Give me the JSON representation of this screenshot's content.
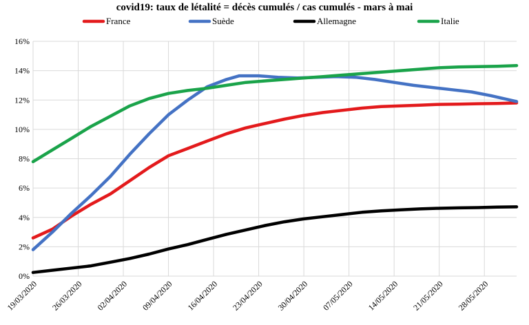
{
  "chart_data": {
    "type": "line",
    "title": "covid19: taux de létalité = décès cumulés / cas cumulés - mars à mai",
    "xlabel": "",
    "ylabel": "",
    "ylim": [
      0,
      16
    ],
    "yticks": [
      "0%",
      "2%",
      "4%",
      "6%",
      "8%",
      "10%",
      "12%",
      "14%",
      "16%"
    ],
    "yticks_values": [
      0,
      2,
      4,
      6,
      8,
      10,
      12,
      14,
      16
    ],
    "xticks": [
      "19/03/2020",
      "26/03/2020",
      "02/04/2020",
      "09/04/2020",
      "16/04/2020",
      "23/04/2020",
      "30/04/2020",
      "07/05/2020",
      "14/05/2020",
      "21/05/2020",
      "28/05/2020"
    ],
    "x_start": "19/03/2020",
    "x_end": "02/06/2020",
    "grid": true,
    "legend_position": "top",
    "series": [
      {
        "name": "France",
        "color": "#e31a1c",
        "points": [
          [
            "19/03/2020",
            2.6
          ],
          [
            "22/03/2020",
            3.2
          ],
          [
            "25/03/2020",
            4.1
          ],
          [
            "28/03/2020",
            4.9
          ],
          [
            "31/03/2020",
            5.6
          ],
          [
            "03/04/2020",
            6.5
          ],
          [
            "06/04/2020",
            7.4
          ],
          [
            "09/04/2020",
            8.2
          ],
          [
            "12/04/2020",
            8.7
          ],
          [
            "15/04/2020",
            9.2
          ],
          [
            "18/04/2020",
            9.7
          ],
          [
            "21/04/2020",
            10.1
          ],
          [
            "24/04/2020",
            10.4
          ],
          [
            "27/04/2020",
            10.7
          ],
          [
            "30/04/2020",
            10.95
          ],
          [
            "03/05/2020",
            11.15
          ],
          [
            "06/05/2020",
            11.3
          ],
          [
            "09/05/2020",
            11.45
          ],
          [
            "12/05/2020",
            11.55
          ],
          [
            "15/05/2020",
            11.6
          ],
          [
            "18/05/2020",
            11.65
          ],
          [
            "21/05/2020",
            11.7
          ],
          [
            "24/05/2020",
            11.72
          ],
          [
            "27/05/2020",
            11.75
          ],
          [
            "30/05/2020",
            11.77
          ],
          [
            "02/06/2020",
            11.8
          ]
        ]
      },
      {
        "name": "Suède",
        "color": "#4472c4",
        "points": [
          [
            "19/03/2020",
            1.8
          ],
          [
            "22/03/2020",
            3.0
          ],
          [
            "25/03/2020",
            4.3
          ],
          [
            "28/03/2020",
            5.5
          ],
          [
            "31/03/2020",
            6.8
          ],
          [
            "03/04/2020",
            8.3
          ],
          [
            "06/04/2020",
            9.7
          ],
          [
            "09/04/2020",
            11.0
          ],
          [
            "12/04/2020",
            12.0
          ],
          [
            "15/04/2020",
            12.9
          ],
          [
            "18/04/2020",
            13.4
          ],
          [
            "20/04/2020",
            13.65
          ],
          [
            "23/04/2020",
            13.65
          ],
          [
            "26/04/2020",
            13.55
          ],
          [
            "29/04/2020",
            13.5
          ],
          [
            "02/05/2020",
            13.55
          ],
          [
            "05/05/2020",
            13.6
          ],
          [
            "08/05/2020",
            13.55
          ],
          [
            "11/05/2020",
            13.4
          ],
          [
            "14/05/2020",
            13.2
          ],
          [
            "17/05/2020",
            13.0
          ],
          [
            "20/05/2020",
            12.85
          ],
          [
            "23/05/2020",
            12.7
          ],
          [
            "26/05/2020",
            12.55
          ],
          [
            "29/05/2020",
            12.3
          ],
          [
            "01/06/2020",
            12.0
          ],
          [
            "02/06/2020",
            11.9
          ]
        ]
      },
      {
        "name": "Allemagne",
        "color": "#000000",
        "points": [
          [
            "19/03/2020",
            0.25
          ],
          [
            "22/03/2020",
            0.4
          ],
          [
            "25/03/2020",
            0.55
          ],
          [
            "28/03/2020",
            0.7
          ],
          [
            "31/03/2020",
            0.95
          ],
          [
            "03/04/2020",
            1.2
          ],
          [
            "06/04/2020",
            1.5
          ],
          [
            "09/04/2020",
            1.85
          ],
          [
            "12/04/2020",
            2.15
          ],
          [
            "15/04/2020",
            2.5
          ],
          [
            "18/04/2020",
            2.85
          ],
          [
            "21/04/2020",
            3.15
          ],
          [
            "24/04/2020",
            3.45
          ],
          [
            "27/04/2020",
            3.7
          ],
          [
            "30/04/2020",
            3.9
          ],
          [
            "03/05/2020",
            4.05
          ],
          [
            "06/05/2020",
            4.2
          ],
          [
            "09/05/2020",
            4.35
          ],
          [
            "12/05/2020",
            4.45
          ],
          [
            "15/05/2020",
            4.52
          ],
          [
            "18/05/2020",
            4.58
          ],
          [
            "21/05/2020",
            4.62
          ],
          [
            "24/05/2020",
            4.65
          ],
          [
            "27/05/2020",
            4.67
          ],
          [
            "30/05/2020",
            4.7
          ],
          [
            "02/06/2020",
            4.72
          ]
        ]
      },
      {
        "name": "Italie",
        "color": "#1aa34a",
        "points": [
          [
            "19/03/2020",
            7.8
          ],
          [
            "22/03/2020",
            8.6
          ],
          [
            "25/03/2020",
            9.4
          ],
          [
            "28/03/2020",
            10.2
          ],
          [
            "31/03/2020",
            10.9
          ],
          [
            "03/04/2020",
            11.6
          ],
          [
            "06/04/2020",
            12.1
          ],
          [
            "09/04/2020",
            12.45
          ],
          [
            "12/04/2020",
            12.65
          ],
          [
            "15/04/2020",
            12.8
          ],
          [
            "18/04/2020",
            13.0
          ],
          [
            "21/04/2020",
            13.2
          ],
          [
            "24/04/2020",
            13.3
          ],
          [
            "27/04/2020",
            13.4
          ],
          [
            "30/04/2020",
            13.5
          ],
          [
            "03/05/2020",
            13.6
          ],
          [
            "06/05/2020",
            13.7
          ],
          [
            "09/05/2020",
            13.8
          ],
          [
            "12/05/2020",
            13.9
          ],
          [
            "15/05/2020",
            14.0
          ],
          [
            "18/05/2020",
            14.1
          ],
          [
            "21/05/2020",
            14.2
          ],
          [
            "24/05/2020",
            14.25
          ],
          [
            "27/05/2020",
            14.28
          ],
          [
            "30/05/2020",
            14.3
          ],
          [
            "02/06/2020",
            14.35
          ]
        ]
      }
    ]
  }
}
